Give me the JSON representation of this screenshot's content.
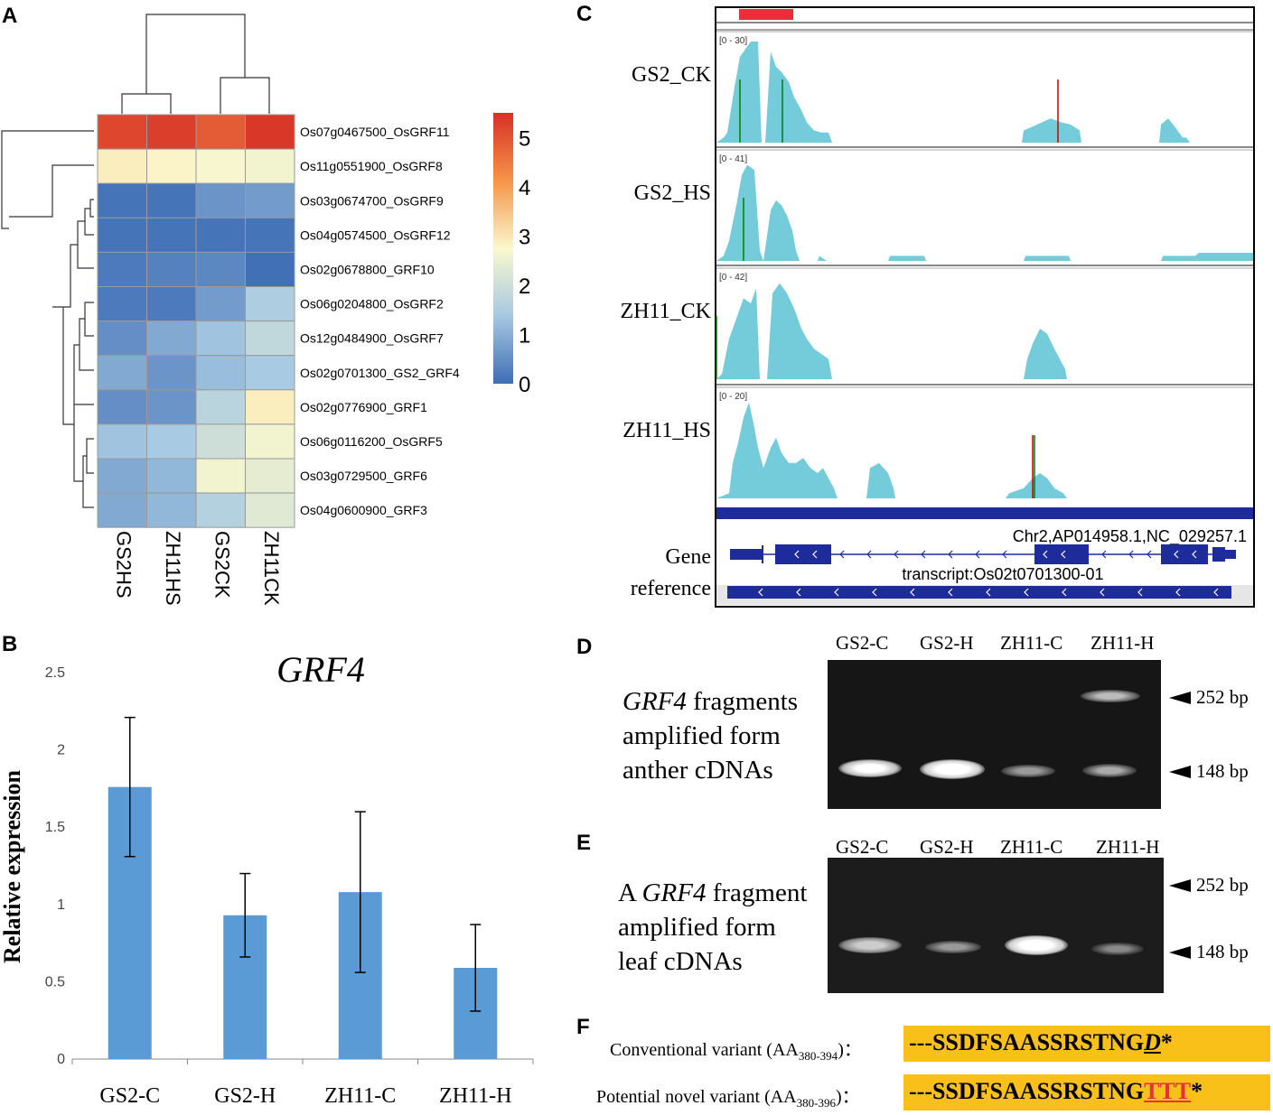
{
  "panels": {
    "a": "A",
    "b": "B",
    "c": "C",
    "d": "D",
    "e": "E",
    "f": "F"
  },
  "chart_data": [
    {
      "type": "heatmap",
      "panel": "A",
      "columns": [
        "GS2HS",
        "ZH11HS",
        "GS2CK",
        "ZH11CK"
      ],
      "rows": [
        "Os07g0467500_OsGRF11",
        "Os11g0551900_OsGRF8",
        "Os03g0674700_OsGRF9",
        "Os04g0574500_OsGRF12",
        "Os02g0678800_GRF10",
        "Os06g0204800_OsGRF2",
        "Os12g0484900_OsGRF7",
        "Os02g0701300_GS2_GRF4",
        "Os02g0776900_GRF1",
        "Os06g0116200_OsGRF5",
        "Os03g0729500_GRF6",
        "Os04g0600900_GRF3"
      ],
      "values": [
        [
          5.2,
          5.3,
          4.9,
          5.4
        ],
        [
          2.9,
          2.8,
          2.7,
          2.6
        ],
        [
          0.1,
          0.1,
          0.6,
          0.7
        ],
        [
          0.1,
          0.1,
          0.1,
          0.1
        ],
        [
          0.2,
          0.3,
          0.4,
          0.05
        ],
        [
          0.2,
          0.2,
          0.7,
          1.5
        ],
        [
          0.5,
          0.9,
          1.3,
          1.8
        ],
        [
          0.9,
          0.6,
          1.2,
          1.4
        ],
        [
          0.5,
          0.6,
          1.7,
          2.9
        ],
        [
          1.3,
          1.4,
          2.0,
          2.6
        ],
        [
          0.9,
          1.1,
          2.6,
          2.4
        ],
        [
          0.9,
          1.1,
          1.6,
          2.3
        ]
      ],
      "colorbar": {
        "min": 0,
        "max": 5.5,
        "ticks": [
          0,
          1,
          2,
          3,
          4,
          5
        ],
        "colors": [
          "#3E6DB5",
          "#A6C9E2",
          "#FBF8CD",
          "#F59448",
          "#D73026"
        ]
      }
    },
    {
      "type": "bar",
      "panel": "B",
      "title": "GRF4",
      "ylabel": "Relative expression",
      "categories": [
        "GS2-C",
        "GS2-H",
        "ZH11-C",
        "ZH11-H"
      ],
      "values": [
        1.76,
        0.93,
        1.08,
        0.59
      ],
      "errors": [
        0.45,
        0.27,
        0.52,
        0.28
      ],
      "ylim": [
        0,
        2.5
      ],
      "yticks": [
        0,
        0.5,
        1,
        1.5,
        2,
        2.5
      ],
      "ytick_labels": [
        "0",
        "0.5",
        "1",
        "1.5",
        "2",
        "2.5"
      ],
      "color": "#5B9BD5"
    },
    {
      "type": "area",
      "panel": "C",
      "tracks": [
        {
          "name": "GS2_CK",
          "range": "[0 - 30]"
        },
        {
          "name": "GS2_HS",
          "range": "[0 - 41]"
        },
        {
          "name": "ZH11_CK",
          "range": "[0 - 42]"
        },
        {
          "name": "ZH11_HS",
          "range": "[0 - 20]"
        }
      ],
      "locus": "Chr2,AP014958.1,NC_029257.1",
      "transcript": "transcript:Os02t0701300-01",
      "gene_label_1": "Gene",
      "gene_label_2": "reference",
      "coverage_color": "#74CCDA"
    }
  ],
  "gels": {
    "d": {
      "lanes": [
        "GS2-C",
        "GS2-H",
        "ZH11-C",
        "ZH11-H"
      ],
      "caption_italic": "GRF4",
      "caption_line1_rest": " fragments",
      "caption_line2": "amplified form",
      "caption_line3": "anther cDNAs",
      "marker_high": "252 bp",
      "marker_low": "148 bp"
    },
    "e": {
      "lanes": [
        "GS2-C",
        "GS2-H",
        "ZH11-C",
        "ZH11-H"
      ],
      "caption_prefix": "A ",
      "caption_italic": "GRF4",
      "caption_line1_rest": " fragment",
      "caption_line2": "amplified form",
      "caption_line3": "leaf cDNAs",
      "marker_high": "252 bp",
      "marker_low": "148 bp"
    }
  },
  "sequences": {
    "conventional": {
      "label": "Conventional variant (AA",
      "subscript": "380-394",
      "label_end": ")：",
      "seq": "---SSDFSAASSRSTNG",
      "tail": "D",
      "stop": "*"
    },
    "novel": {
      "label": "Potential novel variant (AA",
      "subscript": "380-396",
      "label_end": ")：",
      "seq": "---SSDFSAASSRSTNG",
      "tail": "TTT",
      "stop": "*"
    }
  }
}
